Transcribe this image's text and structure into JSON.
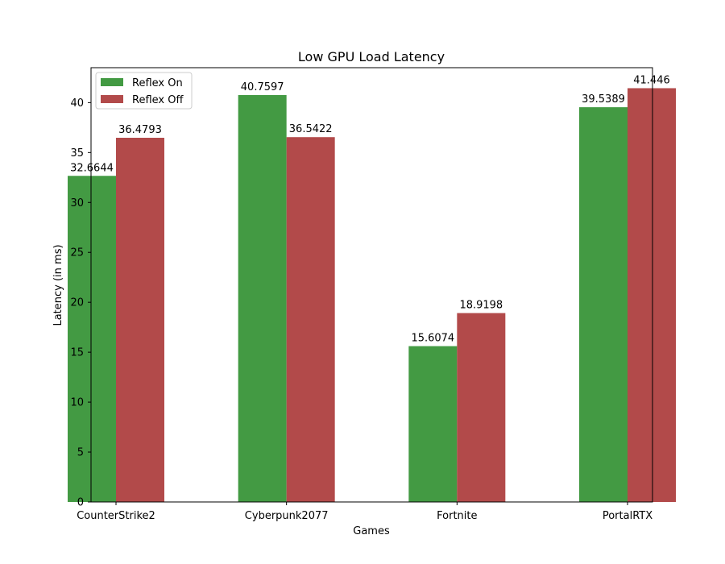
{
  "chart_data": {
    "type": "bar",
    "title": "Low GPU Load Latency",
    "xlabel": "Games",
    "ylabel": "Latency (in ms)",
    "categories": [
      "CounterStrike2",
      "Cyberpunk2077",
      "Fortnite",
      "PortalRTX"
    ],
    "series": [
      {
        "name": "Reflex On",
        "color": "#439a43",
        "values": [
          32.6644,
          40.7597,
          15.6074,
          39.5389
        ]
      },
      {
        "name": "Reflex Off",
        "color": "#b24a4a",
        "values": [
          36.4793,
          36.5422,
          18.9198,
          41.446
        ]
      }
    ],
    "ylim": [
      0,
      43.5
    ],
    "yticks": [
      0,
      5,
      10,
      15,
      20,
      25,
      30,
      35,
      40
    ],
    "grid": false,
    "legend_position": "top-left"
  }
}
